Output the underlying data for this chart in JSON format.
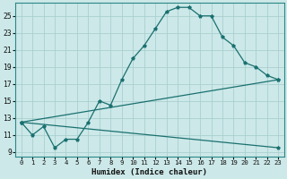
{
  "xlabel": "Humidex (Indice chaleur)",
  "background_color": "#cce8e8",
  "grid_color": "#aacfcf",
  "line_color": "#1a7070",
  "xlim": [
    -0.5,
    23.5
  ],
  "ylim": [
    8.5,
    26.5
  ],
  "xticks": [
    0,
    1,
    2,
    3,
    4,
    5,
    6,
    7,
    8,
    9,
    10,
    11,
    12,
    13,
    14,
    15,
    16,
    17,
    18,
    19,
    20,
    21,
    22,
    23
  ],
  "yticks": [
    9,
    11,
    13,
    15,
    17,
    19,
    21,
    23,
    25
  ],
  "line1_x": [
    0,
    1,
    2,
    3,
    4,
    5,
    6,
    7,
    8,
    9,
    10,
    11,
    12,
    13,
    14,
    15,
    16,
    17,
    18,
    19,
    20,
    21,
    22,
    23
  ],
  "line1_y": [
    12.5,
    11.0,
    12.0,
    9.5,
    10.5,
    10.5,
    12.5,
    15.0,
    14.5,
    17.5,
    20.0,
    21.5,
    23.5,
    25.5,
    26.0,
    26.0,
    25.0,
    25.0,
    22.5,
    21.5,
    19.5,
    19.0,
    18.0,
    17.5
  ],
  "line2_x": [
    0,
    23
  ],
  "line2_y": [
    12.5,
    9.5
  ],
  "line3_x": [
    0,
    23
  ],
  "line3_y": [
    12.5,
    17.5
  ]
}
